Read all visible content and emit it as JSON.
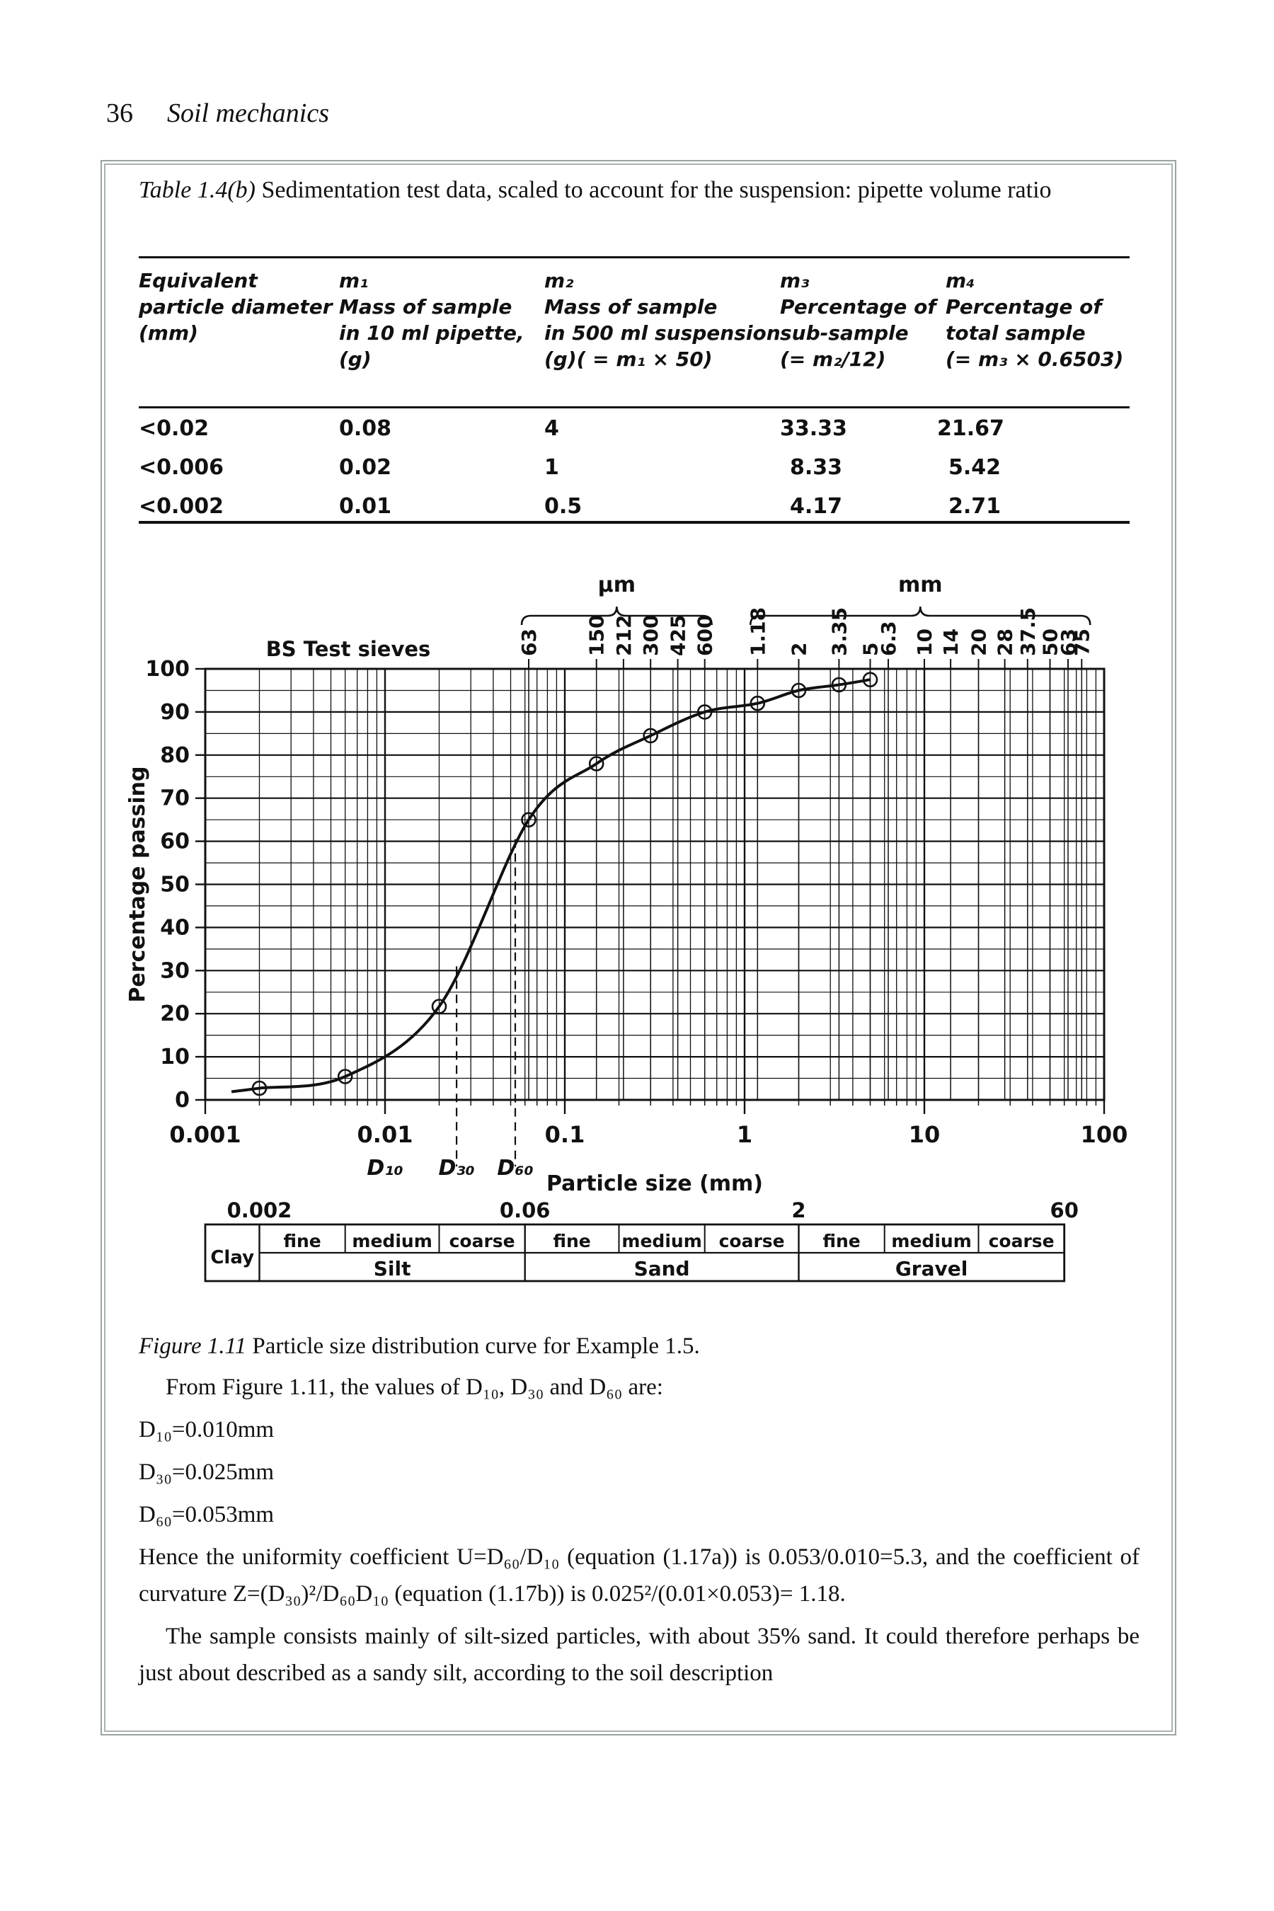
{
  "page": {
    "number": "36",
    "running_title": "Soil mechanics"
  },
  "data_table": {
    "caption_label": "Table 1.4(b)",
    "caption_text": " Sedimentation test data, scaled to account for the suspension: pipette volume ratio",
    "columns": [
      {
        "header_lines": [
          "Equivalent",
          "particle diameter",
          "(mm)"
        ]
      },
      {
        "header_lines": [
          "m₁",
          "Mass of sample",
          "in 10 ml pipette,",
          "(g)"
        ]
      },
      {
        "header_lines": [
          "m₂",
          "Mass of sample",
          "in 500 ml suspension",
          "(g)( = m₁ × 50)"
        ]
      },
      {
        "header_lines": [
          "m₃",
          "Percentage of",
          "sub-sample",
          "(= m₂/12)"
        ]
      },
      {
        "header_lines": [
          "m₄",
          "Percentage of",
          "total sample",
          "(= m₃ × 0.6503)"
        ]
      }
    ],
    "rows": [
      [
        "<0.02",
        "0.08",
        "4",
        "33.33",
        "21.67"
      ],
      [
        "<0.006",
        "0.02",
        "1",
        "8.33",
        "5.42"
      ],
      [
        "<0.002",
        "0.01",
        "0.5",
        "4.17",
        "2.71"
      ]
    ]
  },
  "figure": {
    "caption_label": "Figure 1.11",
    "caption_text": " Particle size distribution curve for Example 1.5.",
    "chart_data": {
      "type": "line",
      "title": "",
      "xlabel": "Particle size (mm)",
      "ylabel": "Percentage passing",
      "xscale": "log",
      "xlim": [
        0.001,
        100
      ],
      "ylim": [
        0,
        100
      ],
      "x_tick_labels": [
        "0.001",
        "0.01",
        "0.1",
        "1",
        "10",
        "100"
      ],
      "y_tick_step": 10,
      "y_grid_step": 5,
      "sieve_caption": "BS Test sieves",
      "sieve_groups": [
        {
          "unit": "μm",
          "scale": 0.001,
          "sizes": [
            "63",
            "150",
            "212",
            "300",
            "425",
            "600"
          ]
        },
        {
          "unit": "mm",
          "scale": 1,
          "sizes": [
            "1.18",
            "2",
            "3.35",
            "5",
            "6.3",
            "10",
            "14",
            "20",
            "28",
            "37.5",
            "50",
            "63",
            "75"
          ]
        }
      ],
      "curve_start": [
        0.0014,
        1.9
      ],
      "points": [
        [
          0.002,
          2.71
        ],
        [
          0.006,
          5.42
        ],
        [
          0.02,
          21.67
        ],
        [
          0.063,
          65
        ],
        [
          0.15,
          78
        ],
        [
          0.3,
          84.5
        ],
        [
          0.6,
          90
        ],
        [
          1.18,
          92
        ],
        [
          2,
          95
        ],
        [
          3.35,
          96.3
        ],
        [
          5,
          97.5
        ]
      ],
      "d_markers": [
        {
          "label": "D₁₀",
          "value": 0.01,
          "drop_from": null
        },
        {
          "label": "D₃₀",
          "value": 0.025,
          "drop_from": 31
        },
        {
          "label": "D₆₀",
          "value": 0.053,
          "drop_from": 60.5
        }
      ],
      "classification": {
        "boundary_labels": [
          "0.002",
          "0.06",
          "2",
          "60"
        ],
        "clay_label": "Clay",
        "clay_range": [
          0.001,
          0.002
        ],
        "groups": [
          {
            "name": "Silt",
            "from": 0.002,
            "to": 0.06,
            "sub_bounds": [
              0.006,
              0.02
            ],
            "sub_labels": [
              "fine",
              "medium",
              "coarse"
            ]
          },
          {
            "name": "Sand",
            "from": 0.06,
            "to": 2,
            "sub_bounds": [
              0.2,
              0.6
            ],
            "sub_labels": [
              "fine",
              "medium",
              "coarse"
            ]
          },
          {
            "name": "Gravel",
            "from": 2,
            "to": 60,
            "sub_bounds": [
              6,
              20
            ],
            "sub_labels": [
              "fine",
              "medium",
              "coarse"
            ]
          }
        ]
      }
    }
  },
  "text": {
    "p_intro": "From Figure 1.11, the values of D₁₀, D₃₀ and D₆₀ are:",
    "d10": "D₁₀=0.010mm",
    "d30": "D₃₀=0.025mm",
    "d60": "D₆₀=0.053mm",
    "p_hence": "Hence the uniformity coefficient U=D₆₀/D₁₀ (equation (1.17a)) is 0.053/0.010=5.3, and the coefficient of curvature Z=(D₃₀)²/D₆₀D₁₀ (equation (1.17b)) is 0.025²/(0.01×0.053)= 1.18.",
    "p_sample": "The sample consists mainly of silt-sized particles, with about 35% sand. It could therefore perhaps be just about described as a sandy silt, according to the soil description"
  }
}
